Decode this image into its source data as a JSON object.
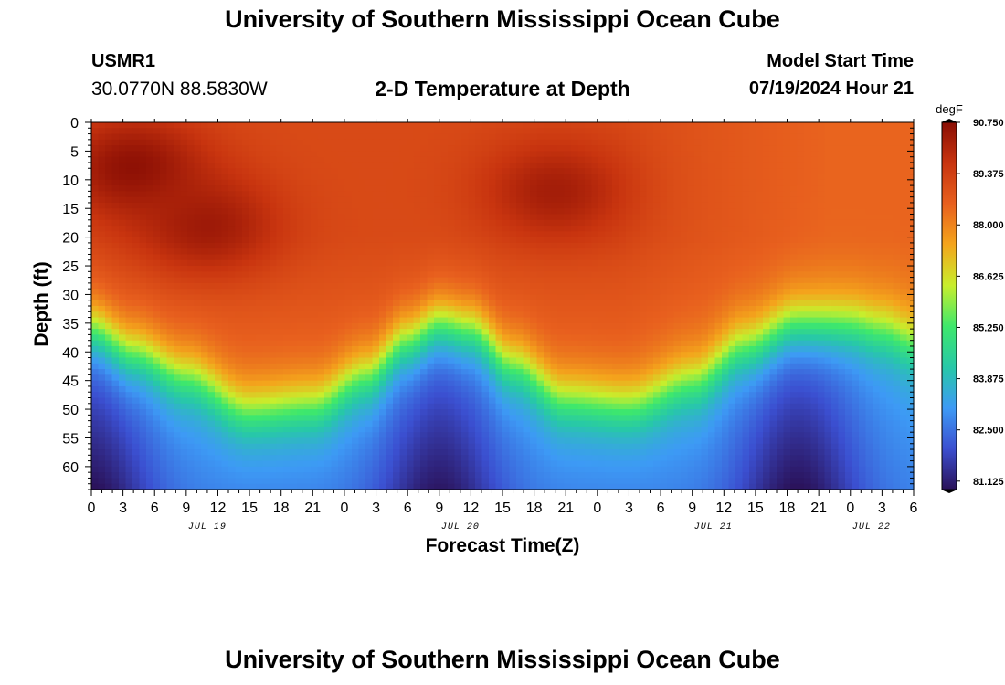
{
  "header": {
    "title": "University of Southern Mississippi Ocean Cube",
    "station": "USMR1",
    "coordinates": "30.0770N  88.5830W",
    "subtitle": "2-D Temperature at Depth",
    "model_start_label": "Model Start Time",
    "model_start_value": "07/19/2024 Hour 21"
  },
  "footer": {
    "title": "University of Southern Mississippi Ocean Cube"
  },
  "chart_data": {
    "type": "heatmap",
    "title": "2-D Temperature at Depth",
    "xlabel": "Forecast Time(Z)",
    "ylabel": "Depth (ft)",
    "x_range_hours": [
      0,
      78
    ],
    "x_tick_step_hours": 3,
    "x_tick_labels": [
      "0",
      "3",
      "6",
      "9",
      "12",
      "15",
      "18",
      "21",
      "0",
      "3",
      "6",
      "9",
      "12",
      "15",
      "18",
      "21",
      "0",
      "3",
      "6",
      "9",
      "12",
      "15",
      "18",
      "21",
      "0",
      "3",
      "6"
    ],
    "date_labels": [
      {
        "label": "JUL 19",
        "hour": 11
      },
      {
        "label": "JUL 20",
        "hour": 35
      },
      {
        "label": "JUL 21",
        "hour": 59
      },
      {
        "label": "JUL 22",
        "hour": 74
      }
    ],
    "y_range_ft": [
      0,
      64
    ],
    "y_ticks": [
      0,
      5,
      10,
      15,
      20,
      25,
      30,
      35,
      40,
      45,
      50,
      55,
      60
    ],
    "y_minor_step": 1,
    "y_reversed": true,
    "colorbar": {
      "unit": "degF",
      "min": 80.9,
      "max": 90.75,
      "tick_values": [
        90.75,
        89.375,
        88.0,
        86.625,
        85.25,
        83.875,
        82.5,
        81.125
      ],
      "tick_labels": [
        "90.750",
        "89.375",
        "88.000",
        "86.625",
        "85.250",
        "83.875",
        "82.500",
        "81.125"
      ],
      "colors": [
        "#2a1158",
        "#3b4fd0",
        "#3d9af5",
        "#27c8a8",
        "#3ee86c",
        "#c8ee2c",
        "#f4a51c",
        "#e8601e",
        "#c8340f",
        "#8a0e04"
      ]
    },
    "field_model": {
      "thermocline_depth_ft": [
        [
          0,
          31
        ],
        [
          4,
          35
        ],
        [
          9,
          39
        ],
        [
          15,
          45
        ],
        [
          21,
          44
        ],
        [
          26,
          39
        ],
        [
          30,
          33
        ],
        [
          33,
          30
        ],
        [
          36,
          31
        ],
        [
          40,
          37
        ],
        [
          45,
          43
        ],
        [
          51,
          44
        ],
        [
          57,
          40
        ],
        [
          62,
          34
        ],
        [
          67,
          30
        ],
        [
          72,
          30
        ],
        [
          75,
          31
        ],
        [
          78,
          33
        ]
      ],
      "warm_cores": [
        {
          "hour": 4,
          "depth_ft": 8,
          "degF": 90.7
        },
        {
          "hour": 11,
          "depth_ft": 18,
          "degF": 90.4
        },
        {
          "hour": 44,
          "depth_ft": 12,
          "degF": 90.3
        }
      ],
      "surface_degF": 89.1,
      "mid_layer_degF": 88.9,
      "late_surface_degF": 88.5,
      "deep_base_degF": 82.8,
      "deep_cold_cores": [
        {
          "hour": 0,
          "degF": 80.9
        },
        {
          "hour": 33,
          "degF": 81.0
        },
        {
          "hour": 67,
          "degF": 80.9
        }
      ]
    }
  }
}
